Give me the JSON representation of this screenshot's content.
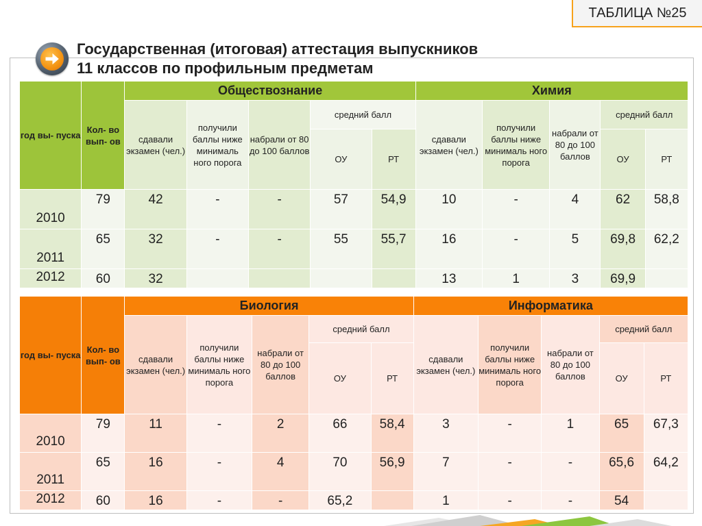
{
  "badge": "ТАБЛИЦА №25",
  "title": {
    "line1": "Государственная (итоговая) аттестация выпускников",
    "line2": "11 классов по профильным предметам"
  },
  "headers": {
    "year": "год вы- пуска",
    "count": "Кол- во вып- ов",
    "took": "сдавали экзамен (чел.)",
    "below": "получили баллы ниже минималь ного порога",
    "high": "набрали от 80 до 100 баллов",
    "avg": "средний балл",
    "ou": "ОУ",
    "rt": "РТ"
  },
  "table1": {
    "subject_a": "Обществознание",
    "subject_b": "Химия",
    "b_below": "получили баллы ниже минималь ного порога",
    "rows": [
      {
        "year": "2010",
        "count": "79",
        "a": [
          "42",
          "-",
          "-",
          "57",
          "54,9"
        ],
        "b": [
          "10",
          "-",
          "4",
          "62",
          "58,8"
        ]
      },
      {
        "year": "2011",
        "count": "65",
        "a": [
          "32",
          "-",
          "-",
          "55",
          "55,7"
        ],
        "b": [
          "16",
          "-",
          "5",
          "69,8",
          "62,2"
        ]
      },
      {
        "year": "2012",
        "count": "60",
        "a": [
          "32",
          "",
          "",
          "",
          ""
        ],
        "b": [
          "13",
          "1",
          "3",
          "69,9",
          ""
        ]
      }
    ]
  },
  "table2": {
    "subject_a": "Биология",
    "subject_b": "Информатика",
    "rows": [
      {
        "year": "2010",
        "count": "79",
        "a": [
          "11",
          "-",
          "2",
          "66",
          "58,4"
        ],
        "b": [
          "3",
          "-",
          "1",
          "65",
          "67,3"
        ]
      },
      {
        "year": "2011",
        "count": "65",
        "a": [
          "16",
          "-",
          "4",
          "70",
          "56,9"
        ],
        "b": [
          "7",
          "-",
          "-",
          "65,6",
          "64,2"
        ]
      },
      {
        "year": "2012",
        "count": "60",
        "a": [
          "16",
          "-",
          "-",
          "65,2",
          ""
        ],
        "b": [
          "1",
          "-",
          "-",
          "54",
          ""
        ]
      }
    ]
  }
}
